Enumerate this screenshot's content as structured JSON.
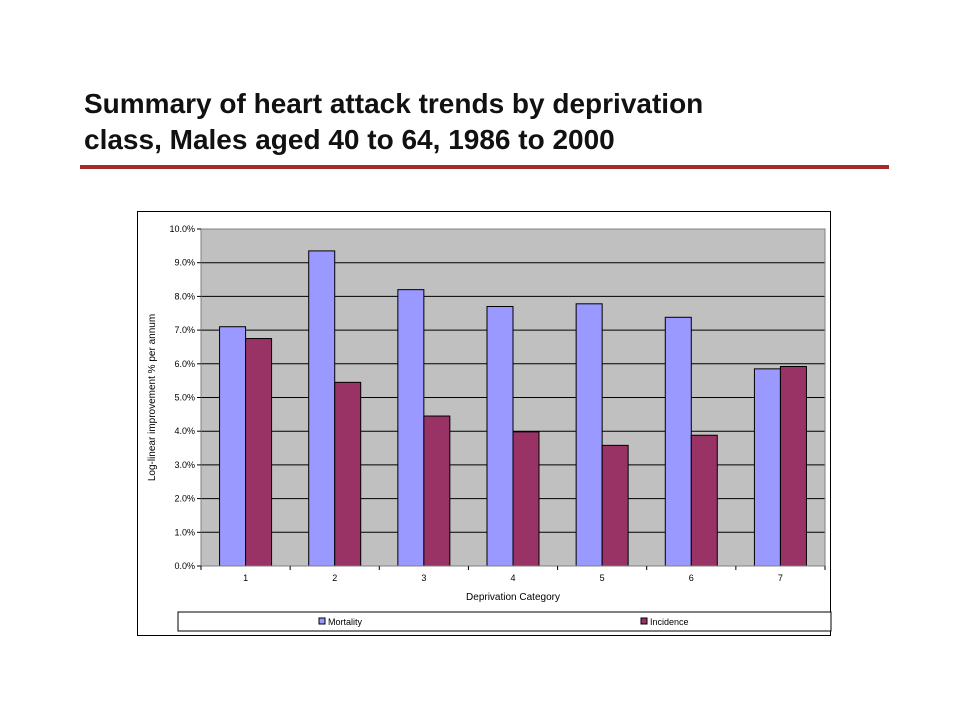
{
  "page": {
    "title_lines": [
      "Summary of heart attack trends by deprivation",
      "class, Males aged 40 to 64, 1986 to 2000"
    ]
  },
  "colors": {
    "title_rule": "#a52a2a",
    "plot_background": "#c0c0c0",
    "gridline": "#000000"
  },
  "chart_data": {
    "type": "bar",
    "categories": [
      "1",
      "2",
      "3",
      "4",
      "5",
      "6",
      "7"
    ],
    "series": [
      {
        "name": "Mortality",
        "color": "#9999ff",
        "values": [
          7.1,
          9.35,
          8.2,
          7.7,
          7.78,
          7.38,
          5.85
        ]
      },
      {
        "name": "Incidence",
        "color": "#993366",
        "values": [
          6.75,
          5.45,
          4.45,
          3.98,
          3.58,
          3.88,
          5.92
        ]
      }
    ],
    "ylim": [
      0,
      10
    ],
    "ytick_step": 1,
    "ytick_labels": [
      "0.0%",
      "1.0%",
      "2.0%",
      "3.0%",
      "4.0%",
      "5.0%",
      "6.0%",
      "7.0%",
      "8.0%",
      "9.0%",
      "10.0%"
    ],
    "xlabel": "Deprivation Category",
    "ylabel": "Log-linear improvement % per annum",
    "grid": true,
    "legend": "bottom"
  }
}
